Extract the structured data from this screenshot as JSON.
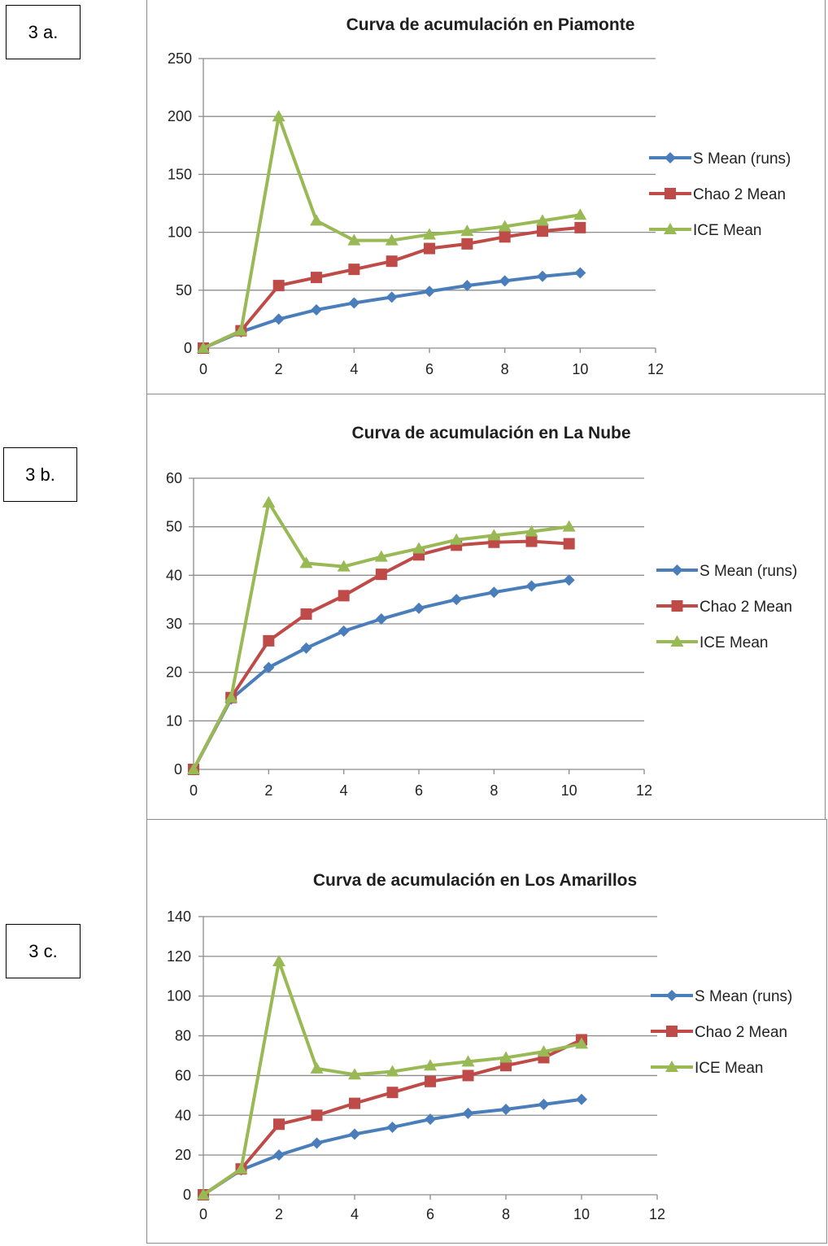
{
  "labels": [
    "3 a.",
    "3 b.",
    "3 c."
  ],
  "colors": {
    "s_mean": "#4a7ebb",
    "chao2": "#be4b48",
    "ice": "#98b954",
    "grid": "#8c8c8c"
  },
  "chart_data": [
    {
      "type": "line",
      "title": "Curva de acumulación en Piamonte",
      "xlim": [
        0,
        12
      ],
      "xticks": [
        0,
        2,
        4,
        6,
        8,
        10,
        12
      ],
      "ylim": [
        0,
        250
      ],
      "yticks": [
        0,
        50,
        100,
        150,
        200,
        250
      ],
      "grid": true,
      "legend_position": "right",
      "x": [
        0,
        1,
        2,
        3,
        4,
        5,
        6,
        7,
        8,
        9,
        10
      ],
      "series": [
        {
          "name": "S Mean (runs)",
          "marker": "diamond",
          "values": [
            0,
            14,
            25,
            33,
            39,
            44,
            49,
            54,
            58,
            62,
            65
          ]
        },
        {
          "name": "Chao 2 Mean",
          "marker": "square",
          "values": [
            0,
            15,
            54,
            61,
            68,
            75,
            86,
            90,
            96,
            101,
            104
          ]
        },
        {
          "name": "ICE Mean",
          "marker": "triangle",
          "values": [
            0,
            15,
            200,
            110,
            93,
            93,
            98,
            101,
            105,
            110,
            115
          ]
        }
      ]
    },
    {
      "type": "line",
      "title": "Curva de acumulación en La Nube",
      "xlim": [
        0,
        12
      ],
      "xticks": [
        0,
        2,
        4,
        6,
        8,
        10,
        12
      ],
      "ylim": [
        0,
        60
      ],
      "yticks": [
        0,
        10,
        20,
        30,
        40,
        50,
        60
      ],
      "grid": true,
      "legend_position": "right",
      "x": [
        0,
        1,
        2,
        3,
        4,
        5,
        6,
        7,
        8,
        9,
        10
      ],
      "series": [
        {
          "name": "S Mean (runs)",
          "marker": "diamond",
          "values": [
            0,
            14.5,
            21,
            25,
            28.5,
            31,
            33.2,
            35,
            36.5,
            37.8,
            39
          ]
        },
        {
          "name": "Chao 2 Mean",
          "marker": "square",
          "values": [
            0,
            14.8,
            26.5,
            32,
            35.8,
            40.2,
            44.2,
            46.2,
            46.8,
            47,
            46.5
          ]
        },
        {
          "name": "ICE Mean",
          "marker": "triangle",
          "values": [
            0,
            14.8,
            55,
            42.5,
            41.8,
            43.8,
            45.5,
            47.3,
            48.2,
            49,
            50
          ]
        }
      ]
    },
    {
      "type": "line",
      "title": "Curva de acumulación en Los Amarillos",
      "xlim": [
        0,
        12
      ],
      "xticks": [
        0,
        2,
        4,
        6,
        8,
        10,
        12
      ],
      "ylim": [
        0,
        140
      ],
      "yticks": [
        0,
        20,
        40,
        60,
        80,
        100,
        120,
        140
      ],
      "grid": true,
      "legend_position": "right",
      "x": [
        0,
        1,
        2,
        3,
        4,
        5,
        6,
        7,
        8,
        9,
        10
      ],
      "series": [
        {
          "name": "S Mean (runs)",
          "marker": "diamond",
          "values": [
            0,
            12.5,
            20,
            26,
            30.5,
            34,
            38,
            41,
            43,
            45.5,
            48
          ]
        },
        {
          "name": "Chao 2 Mean",
          "marker": "square",
          "values": [
            0,
            13,
            35.5,
            40,
            46,
            51.5,
            57,
            60,
            65,
            69,
            78
          ]
        },
        {
          "name": "ICE Mean",
          "marker": "triangle",
          "values": [
            0,
            13,
            117.5,
            63.5,
            60.5,
            62,
            65,
            67,
            69,
            72,
            76
          ]
        }
      ]
    }
  ]
}
